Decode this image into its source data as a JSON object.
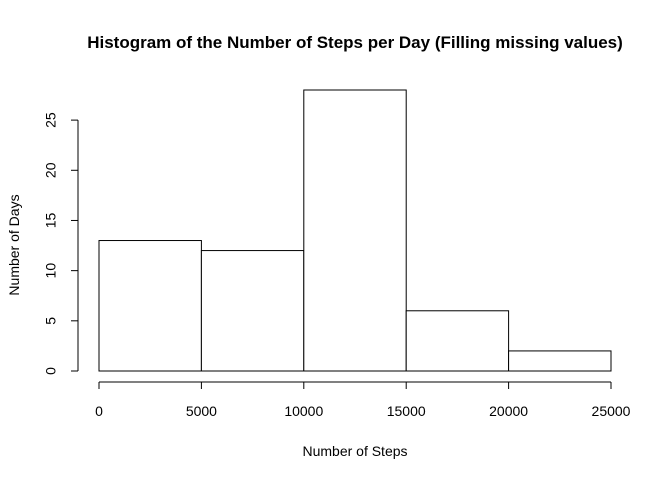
{
  "chart_data": {
    "type": "bar",
    "title": "Histogram of the Number of Steps per Day (Filling missing values)",
    "xlabel": "Number of Steps",
    "ylabel": "Number of Days",
    "bins": [
      {
        "start": 0,
        "end": 5000,
        "value": 13
      },
      {
        "start": 5000,
        "end": 10000,
        "value": 12
      },
      {
        "start": 10000,
        "end": 15000,
        "value": 28
      },
      {
        "start": 15000,
        "end": 20000,
        "value": 6
      },
      {
        "start": 20000,
        "end": 25000,
        "value": 2
      }
    ],
    "xlim": [
      0,
      25000
    ],
    "ylim": [
      0,
      28
    ],
    "x_ticks": [
      0,
      5000,
      10000,
      15000,
      20000,
      25000
    ],
    "x_tick_labels": [
      "0",
      "5000",
      "10000",
      "15000",
      "20000",
      "25000"
    ],
    "y_ticks": [
      0,
      5,
      10,
      15,
      20,
      25
    ],
    "y_tick_labels": [
      "0",
      "5",
      "10",
      "15",
      "20",
      "25"
    ],
    "grid": false,
    "legend": "none",
    "colors": {
      "bar_fill": "#ffffff",
      "bar_stroke": "#000000",
      "background": "#ffffff"
    }
  }
}
